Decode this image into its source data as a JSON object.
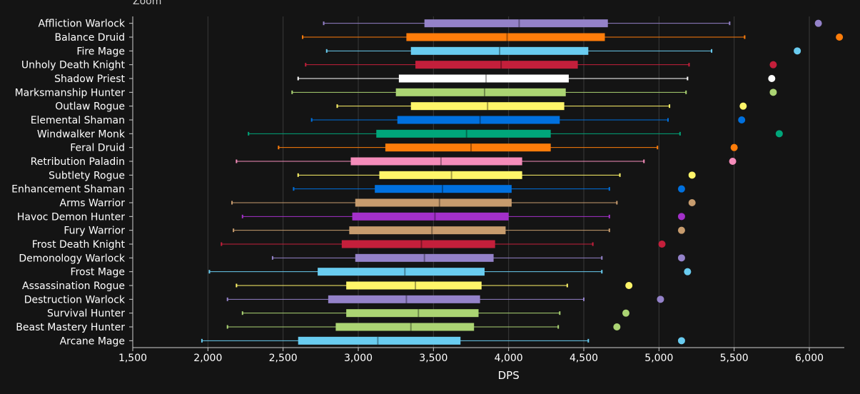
{
  "zoom_label": "Zoom",
  "chart_data": {
    "type": "boxplot",
    "title": "",
    "xlabel": "DPS",
    "xlim": [
      1500,
      6100
    ],
    "xticks": [
      "1,500",
      "2,000",
      "2,500",
      "3,000",
      "3,500",
      "4,000",
      "4,500",
      "5,000",
      "5,500",
      "6,000"
    ],
    "xtick_values": [
      1500,
      2000,
      2500,
      3000,
      3500,
      4000,
      4500,
      5000,
      5500,
      6000
    ],
    "grid": true,
    "series": [
      {
        "name": "Affliction Warlock",
        "color": "#9482c9",
        "min": 2770,
        "q1": 3440,
        "median": 4070,
        "q3": 4660,
        "max": 5470,
        "outlier": 6060
      },
      {
        "name": "Balance Druid",
        "color": "#ff7d0a",
        "min": 2630,
        "q1": 3320,
        "median": 3990,
        "q3": 4640,
        "max": 5570,
        "outlier": 6200
      },
      {
        "name": "Fire Mage",
        "color": "#69ccf0",
        "min": 2790,
        "q1": 3350,
        "median": 3940,
        "q3": 4530,
        "max": 5350,
        "outlier": 5920
      },
      {
        "name": "Unholy Death Knight",
        "color": "#c41f3b",
        "min": 2650,
        "q1": 3380,
        "median": 3950,
        "q3": 4460,
        "max": 5200,
        "outlier": 5760
      },
      {
        "name": "Shadow Priest",
        "color": "#ffffff",
        "min": 2600,
        "q1": 3270,
        "median": 3850,
        "q3": 4400,
        "max": 5190,
        "outlier": 5750
      },
      {
        "name": "Marksmanship Hunter",
        "color": "#abd473",
        "min": 2560,
        "q1": 3250,
        "median": 3840,
        "q3": 4380,
        "max": 5180,
        "outlier": 5760
      },
      {
        "name": "Outlaw Rogue",
        "color": "#fff569",
        "min": 2860,
        "q1": 3350,
        "median": 3860,
        "q3": 4370,
        "max": 5070,
        "outlier": 5560
      },
      {
        "name": "Elemental Shaman",
        "color": "#0070de",
        "min": 2690,
        "q1": 3260,
        "median": 3810,
        "q3": 4340,
        "max": 5060,
        "outlier": 5550
      },
      {
        "name": "Windwalker Monk",
        "color": "#00a67a",
        "min": 2270,
        "q1": 3120,
        "median": 3720,
        "q3": 4280,
        "max": 5140,
        "outlier": 5800
      },
      {
        "name": "Feral Druid",
        "color": "#ff7d0a",
        "min": 2470,
        "q1": 3180,
        "median": 3750,
        "q3": 4280,
        "max": 4990,
        "outlier": 5500
      },
      {
        "name": "Retribution Paladin",
        "color": "#f58cba",
        "min": 2190,
        "q1": 2950,
        "median": 3550,
        "q3": 4090,
        "max": 4900,
        "outlier": 5490
      },
      {
        "name": "Subtlety Rogue",
        "color": "#fff569",
        "min": 2600,
        "q1": 3140,
        "median": 3620,
        "q3": 4090,
        "max": 4740,
        "outlier": 5220
      },
      {
        "name": "Enhancement Shaman",
        "color": "#0070de",
        "min": 2570,
        "q1": 3110,
        "median": 3560,
        "q3": 4020,
        "max": 4670,
        "outlier": 5150
      },
      {
        "name": "Arms Warrior",
        "color": "#c79c6e",
        "min": 2160,
        "q1": 2980,
        "median": 3540,
        "q3": 4020,
        "max": 4720,
        "outlier": 5220
      },
      {
        "name": "Havoc Demon Hunter",
        "color": "#a330c9",
        "min": 2230,
        "q1": 2960,
        "median": 3510,
        "q3": 4000,
        "max": 4670,
        "outlier": 5150
      },
      {
        "name": "Fury Warrior",
        "color": "#c79c6e",
        "min": 2170,
        "q1": 2940,
        "median": 3490,
        "q3": 3980,
        "max": 4670,
        "outlier": 5150
      },
      {
        "name": "Frost Death Knight",
        "color": "#c41f3b",
        "min": 2090,
        "q1": 2890,
        "median": 3420,
        "q3": 3910,
        "max": 4560,
        "outlier": 5020
      },
      {
        "name": "Demonology Warlock",
        "color": "#9482c9",
        "min": 2430,
        "q1": 2980,
        "median": 3440,
        "q3": 3900,
        "max": 4620,
        "outlier": 5150
      },
      {
        "name": "Frost Mage",
        "color": "#69ccf0",
        "min": 2010,
        "q1": 2730,
        "median": 3310,
        "q3": 3840,
        "max": 4620,
        "outlier": 5190
      },
      {
        "name": "Assassination Rogue",
        "color": "#fff569",
        "min": 2190,
        "q1": 2920,
        "median": 3380,
        "q3": 3820,
        "max": 4390,
        "outlier": 4800
      },
      {
        "name": "Destruction Warlock",
        "color": "#9482c9",
        "min": 2130,
        "q1": 2800,
        "median": 3320,
        "q3": 3810,
        "max": 4500,
        "outlier": 5010
      },
      {
        "name": "Survival Hunter",
        "color": "#abd473",
        "min": 2230,
        "q1": 2920,
        "median": 3400,
        "q3": 3800,
        "max": 4340,
        "outlier": 4780
      },
      {
        "name": "Beast Mastery Hunter",
        "color": "#abd473",
        "min": 2130,
        "q1": 2850,
        "median": 3350,
        "q3": 3770,
        "max": 4330,
        "outlier": 4720
      },
      {
        "name": "Arcane Mage",
        "color": "#69ccf0",
        "min": 1960,
        "q1": 2600,
        "median": 3130,
        "q3": 3680,
        "max": 4530,
        "outlier": 5150
      }
    ]
  }
}
